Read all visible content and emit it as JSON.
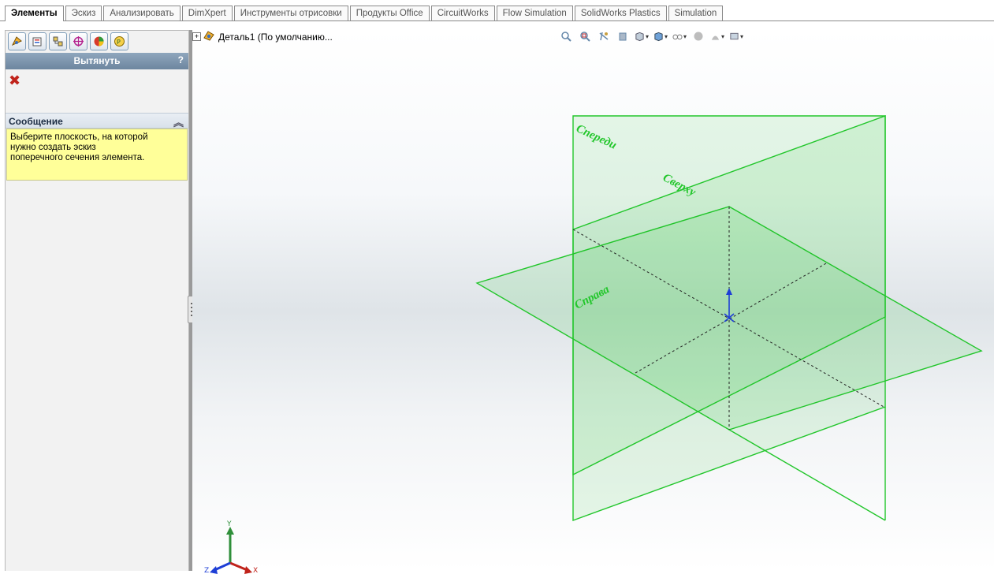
{
  "tabs": [
    {
      "label": "Элементы",
      "active": true
    },
    {
      "label": "Эскиз"
    },
    {
      "label": "Анализировать"
    },
    {
      "label": "DimXpert"
    },
    {
      "label": "Инструменты отрисовки"
    },
    {
      "label": "Продукты Office"
    },
    {
      "label": "CircuitWorks"
    },
    {
      "label": "Flow Simulation"
    },
    {
      "label": "SolidWorks Plastics"
    },
    {
      "label": "Simulation"
    }
  ],
  "property_manager": {
    "icons": [
      "feature-manager-icon",
      "property-manager-icon",
      "configuration-manager-icon",
      "dimxpert-manager-icon",
      "display-manager-icon",
      "cam-icon"
    ],
    "title": "Вытянуть",
    "help": "?",
    "cancel": "✖",
    "message_header": "Сообщение",
    "message_text": "Выберите плоскость, на которой\nнужно создать эскиз\nпоперечного сечения элемента."
  },
  "tree": {
    "expander": "+",
    "part_name": "Деталь1  (По умолчанию..."
  },
  "view_toolbar": [
    "zoom-to-fit-icon",
    "zoom-area-icon",
    "previous-view-icon",
    "section-view-icon",
    "view-orientation-icon",
    "display-style-icon",
    "hide-show-items-icon",
    "edit-appearance-icon",
    "apply-scene-icon",
    "view-settings-icon"
  ],
  "planes": {
    "front": "Спереди",
    "top": "Сверху",
    "right": "Справа",
    "color": "#22c62b"
  },
  "triad": {
    "x": "X",
    "y": "Y",
    "z": "Z"
  }
}
